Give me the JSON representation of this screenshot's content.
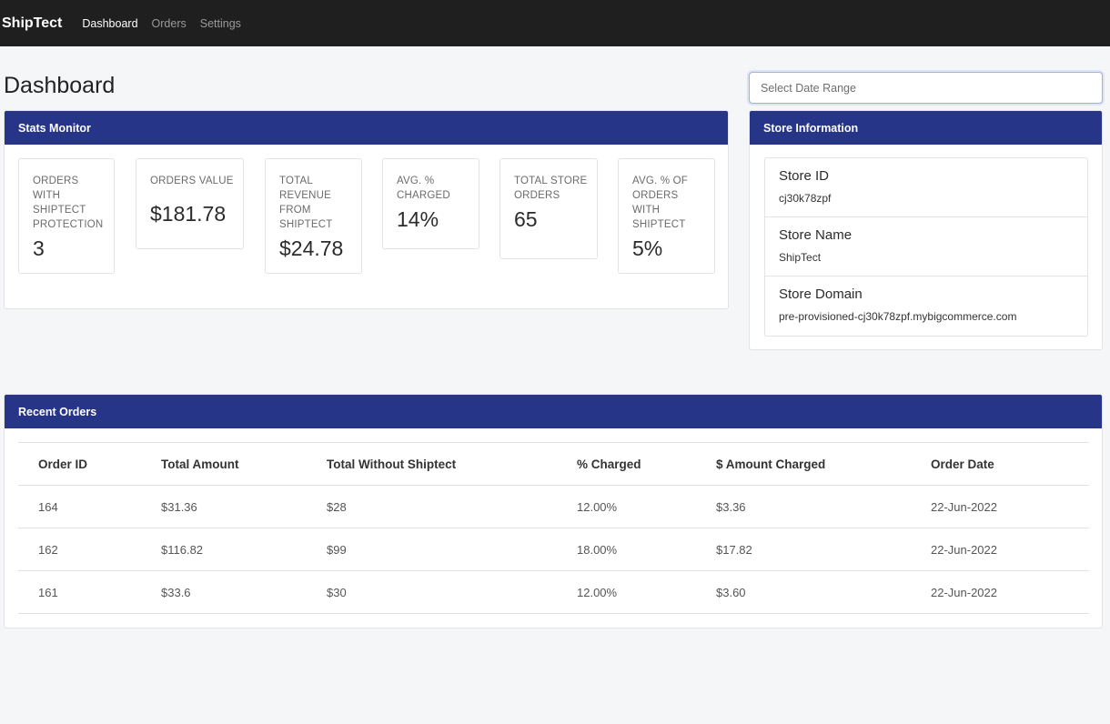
{
  "nav": {
    "brand": "ShipTect",
    "links": [
      {
        "label": "Dashboard",
        "active": true
      },
      {
        "label": "Orders",
        "active": false
      },
      {
        "label": "Settings",
        "active": false
      }
    ]
  },
  "page": {
    "title": "Dashboard",
    "date_range_placeholder": "Select Date Range"
  },
  "stats": {
    "header": "Stats Monitor",
    "items": [
      {
        "label": "Orders with ShipTect Protection",
        "value": "3"
      },
      {
        "label": "Orders Value",
        "value": "$181.78"
      },
      {
        "label": "Total Revenue from ShipTect",
        "value": "$24.78"
      },
      {
        "label": "Avg. % Charged",
        "value": "14%"
      },
      {
        "label": "Total Store Orders",
        "value": "65"
      },
      {
        "label": "Avg. % of Orders with ShipTect",
        "value": "5%"
      }
    ]
  },
  "store": {
    "header": "Store Information",
    "items": [
      {
        "title": "Store ID",
        "value": "cj30k78zpf"
      },
      {
        "title": "Store Name",
        "value": "ShipTect"
      },
      {
        "title": "Store Domain",
        "value": "pre-provisioned-cj30k78zpf.mybigcommerce.com"
      }
    ]
  },
  "orders": {
    "header": "Recent Orders",
    "columns": [
      "Order ID",
      "Total Amount",
      "Total Without Shiptect",
      "% Charged",
      "$ Amount Charged",
      "Order Date"
    ],
    "rows": [
      [
        "164",
        "$31.36",
        "$28",
        "12.00%",
        "$3.36",
        "22-Jun-2022"
      ],
      [
        "162",
        "$116.82",
        "$99",
        "18.00%",
        "$17.82",
        "22-Jun-2022"
      ],
      [
        "161",
        "$33.6",
        "$30",
        "12.00%",
        "$3.60",
        "22-Jun-2022"
      ]
    ]
  },
  "colors": {
    "navbar": "#1f1f1f",
    "card_header": "#263588",
    "page_background": "#f5f6f8"
  }
}
